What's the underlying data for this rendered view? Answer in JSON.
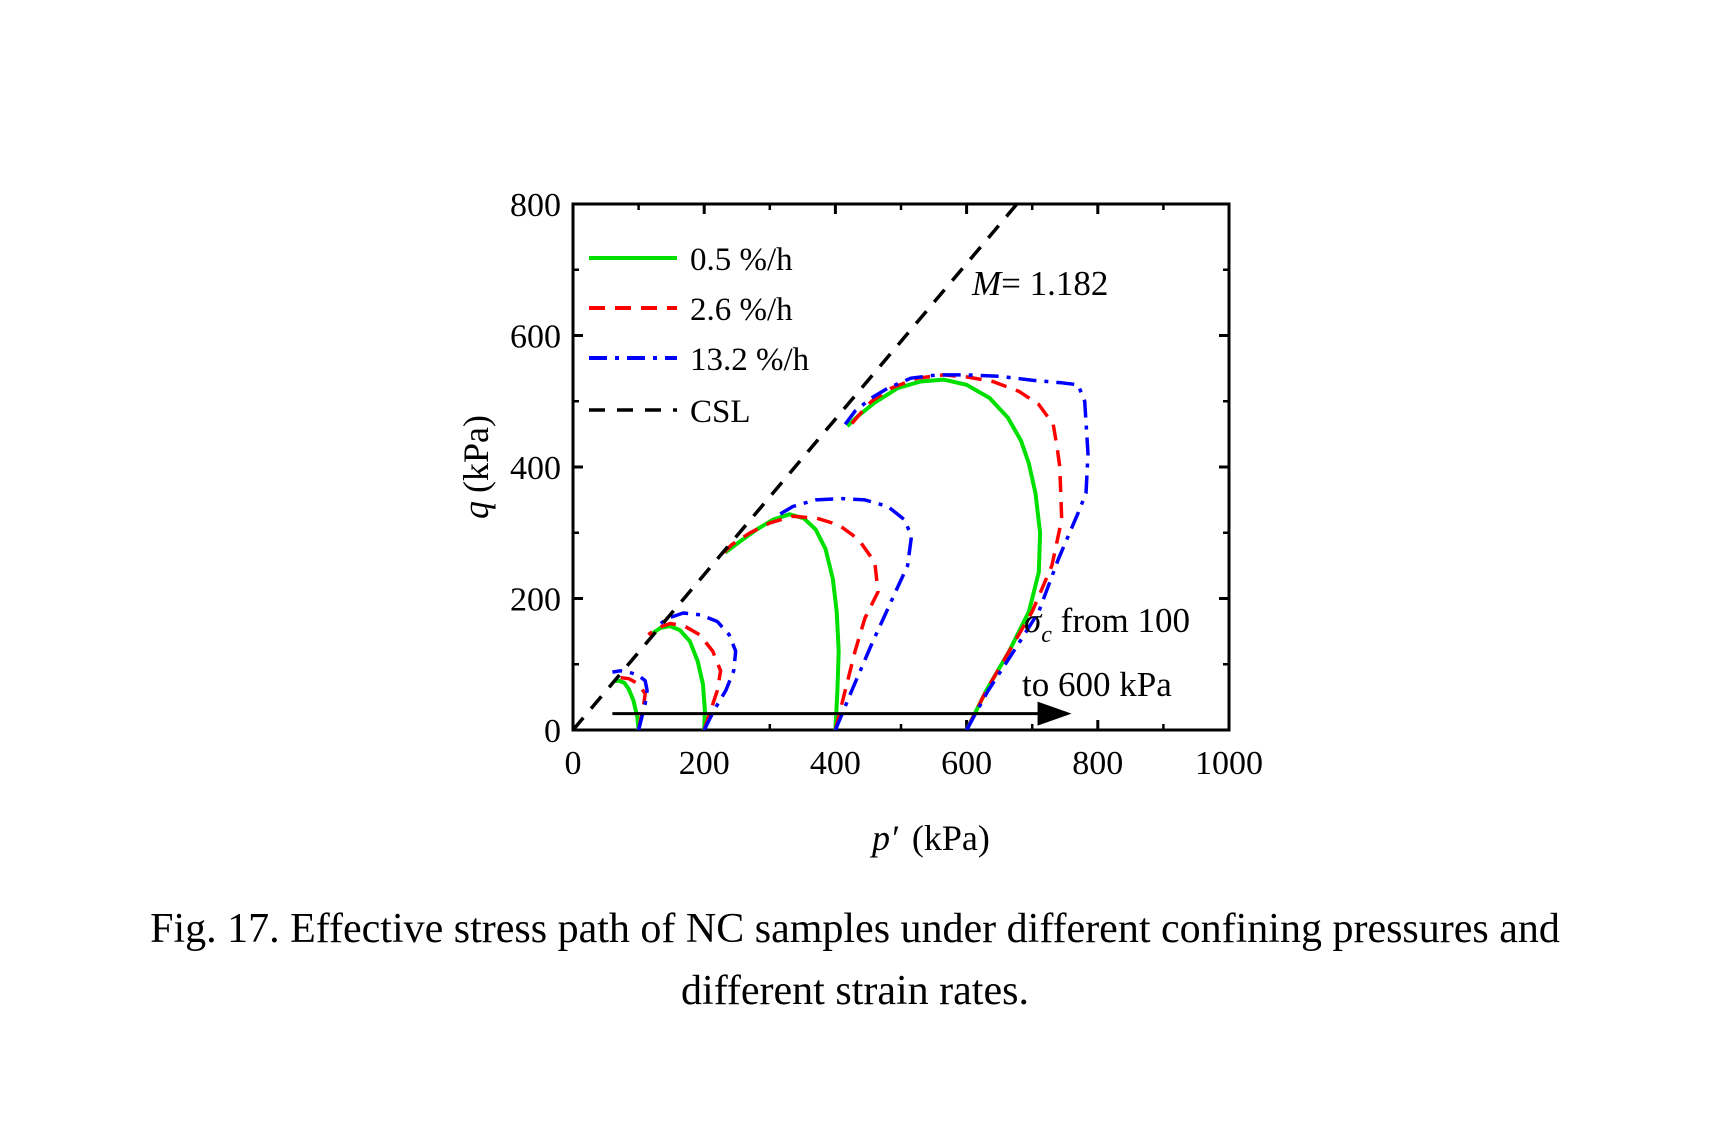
{
  "chart_data": {
    "type": "line",
    "xlabel": "p′ (kPa)",
    "xlabel_parts": {
      "symbol": "p′",
      "unit": "(kPa)"
    },
    "ylabel": "q (kPa)",
    "ylabel_parts": {
      "symbol": "q",
      "unit": "(kPa)"
    },
    "xlim": [
      0,
      1000
    ],
    "ylim": [
      0,
      800
    ],
    "x_ticks": [
      "0",
      "200",
      "400",
      "600",
      "800",
      "1000"
    ],
    "y_ticks": [
      "0",
      "200",
      "400",
      "600",
      "800"
    ],
    "legend_position": "top-left",
    "series": [
      {
        "name": "0.5 %/h",
        "color": "#00e000",
        "style": "solid",
        "paths": [
          [
            [
              100,
              0
            ],
            [
              98,
              20
            ],
            [
              92,
              45
            ],
            [
              85,
              62
            ],
            [
              78,
              72
            ],
            [
              70,
              75
            ],
            [
              62,
              74
            ]
          ],
          [
            [
              200,
              0
            ],
            [
              201,
              30
            ],
            [
              198,
              70
            ],
            [
              190,
              105
            ],
            [
              178,
              135
            ],
            [
              163,
              152
            ],
            [
              148,
              158
            ],
            [
              133,
              155
            ],
            [
              118,
              145
            ]
          ],
          [
            [
              400,
              0
            ],
            [
              403,
              60
            ],
            [
              405,
              120
            ],
            [
              402,
              180
            ],
            [
              396,
              230
            ],
            [
              385,
              275
            ],
            [
              370,
              305
            ],
            [
              352,
              322
            ],
            [
              330,
              328
            ],
            [
              305,
              320
            ],
            [
              280,
              305
            ],
            [
              255,
              287
            ],
            [
              232,
              270
            ]
          ],
          [
            [
              600,
              0
            ],
            [
              630,
              60
            ],
            [
              665,
              120
            ],
            [
              695,
              180
            ],
            [
              710,
              240
            ],
            [
              712,
              300
            ],
            [
              705,
              360
            ],
            [
              695,
              405
            ],
            [
              683,
              440
            ],
            [
              663,
              475
            ],
            [
              635,
              505
            ],
            [
              600,
              525
            ],
            [
              565,
              533
            ],
            [
              530,
              530
            ],
            [
              495,
              520
            ],
            [
              460,
              498
            ],
            [
              435,
              478
            ],
            [
              418,
              462
            ]
          ]
        ]
      },
      {
        "name": "2.6 %/h",
        "color": "#ff0000",
        "style": "dashed",
        "paths": [
          [
            [
              100,
              0
            ],
            [
              104,
              20
            ],
            [
              108,
              40
            ],
            [
              110,
              55
            ],
            [
              100,
              70
            ],
            [
              85,
              78
            ],
            [
              70,
              80
            ],
            [
              60,
              75
            ]
          ],
          [
            [
              200,
              0
            ],
            [
              210,
              30
            ],
            [
              220,
              60
            ],
            [
              225,
              90
            ],
            [
              213,
              120
            ],
            [
              193,
              145
            ],
            [
              170,
              158
            ],
            [
              148,
              162
            ],
            [
              128,
              155
            ],
            [
              115,
              145
            ]
          ],
          [
            [
              400,
              0
            ],
            [
              415,
              60
            ],
            [
              430,
              120
            ],
            [
              445,
              170
            ],
            [
              465,
              210
            ],
            [
              460,
              255
            ],
            [
              435,
              290
            ],
            [
              405,
              312
            ],
            [
              372,
              322
            ],
            [
              335,
              325
            ],
            [
              300,
              315
            ],
            [
              270,
              300
            ],
            [
              242,
              282
            ],
            [
              230,
              270
            ]
          ],
          [
            [
              600,
              0
            ],
            [
              630,
              60
            ],
            [
              665,
              120
            ],
            [
              700,
              180
            ],
            [
              730,
              250
            ],
            [
              745,
              320
            ],
            [
              742,
              400
            ],
            [
              738,
              430
            ],
            [
              732,
              465
            ],
            [
              710,
              495
            ],
            [
              680,
              515
            ],
            [
              640,
              530
            ],
            [
              600,
              537
            ],
            [
              565,
              540
            ],
            [
              525,
              535
            ],
            [
              485,
              520
            ],
            [
              455,
              500
            ],
            [
              435,
              478
            ],
            [
              420,
              460
            ]
          ]
        ]
      },
      {
        "name": "13.2 %/h",
        "color": "#0000ff",
        "style": "dashdot",
        "paths": [
          [
            [
              100,
              0
            ],
            [
              105,
              20
            ],
            [
              110,
              40
            ],
            [
              113,
              60
            ],
            [
              110,
              75
            ],
            [
              100,
              83
            ],
            [
              85,
              88
            ],
            [
              72,
              90
            ],
            [
              60,
              88
            ]
          ],
          [
            [
              200,
              0
            ],
            [
              215,
              30
            ],
            [
              233,
              60
            ],
            [
              245,
              90
            ],
            [
              248,
              120
            ],
            [
              238,
              145
            ],
            [
              220,
              165
            ],
            [
              195,
              175
            ],
            [
              168,
              178
            ],
            [
              145,
              170
            ],
            [
              128,
              158
            ]
          ],
          [
            [
              400,
              0
            ],
            [
              425,
              60
            ],
            [
              455,
              130
            ],
            [
              487,
              200
            ],
            [
              510,
              250
            ],
            [
              516,
              295
            ],
            [
              505,
              320
            ],
            [
              480,
              340
            ],
            [
              445,
              350
            ],
            [
              410,
              352
            ],
            [
              370,
              350
            ],
            [
              335,
              340
            ],
            [
              310,
              325
            ]
          ],
          [
            [
              600,
              0
            ],
            [
              633,
              60
            ],
            [
              672,
              120
            ],
            [
              710,
              180
            ],
            [
              740,
              260
            ],
            [
              770,
              330
            ],
            [
              782,
              360
            ],
            [
              785,
              420
            ],
            [
              780,
              500
            ],
            [
              770,
              525
            ],
            [
              745,
              528
            ],
            [
              700,
              532
            ],
            [
              650,
              538
            ],
            [
              600,
              540
            ],
            [
              555,
              540
            ],
            [
              515,
              535
            ],
            [
              480,
              520
            ],
            [
              455,
              505
            ],
            [
              430,
              485
            ],
            [
              415,
              465
            ]
          ]
        ]
      },
      {
        "name": "CSL",
        "color": "#000000",
        "style": "longdash",
        "paths": [
          [
            [
              0,
              0
            ],
            [
              690,
              815.6
            ]
          ]
        ]
      }
    ],
    "annotations": {
      "csl_label": {
        "symbol": "M",
        "text": "= 1.182"
      },
      "arrow_label_line1": {
        "symbol": "σ",
        "subscript": "c",
        "text": " from 100"
      },
      "arrow_label_line2": "to 600 kPa",
      "arrow": {
        "from": [
          60,
          25
        ],
        "to": [
          760,
          25
        ]
      }
    }
  },
  "caption": {
    "line1": "Fig. 17. Effective stress path of NC samples under different confining pressures and",
    "line2": "different strain rates."
  }
}
